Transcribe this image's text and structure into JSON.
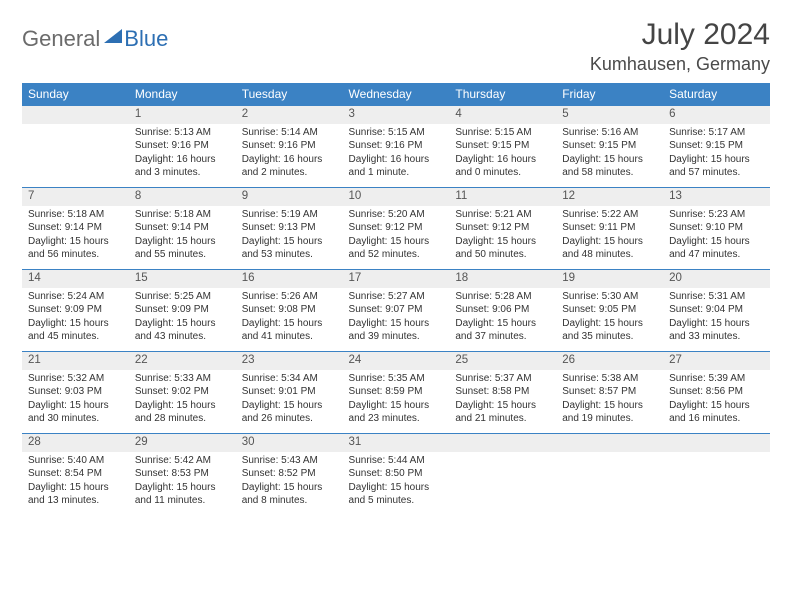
{
  "logo": {
    "general": "General",
    "blue": "Blue"
  },
  "title": "July 2024",
  "location": "Kumhausen, Germany",
  "colors": {
    "header_bg": "#3b82c4",
    "header_text": "#ffffff",
    "daynum_bg": "#eeeeee",
    "border": "#3b82c4",
    "text": "#333333",
    "title_color": "#444444"
  },
  "weekdays": [
    "Sunday",
    "Monday",
    "Tuesday",
    "Wednesday",
    "Thursday",
    "Friday",
    "Saturday"
  ],
  "weeks": [
    [
      null,
      {
        "n": "1",
        "sr": "5:13 AM",
        "ss": "9:16 PM",
        "dl": "16 hours and 3 minutes."
      },
      {
        "n": "2",
        "sr": "5:14 AM",
        "ss": "9:16 PM",
        "dl": "16 hours and 2 minutes."
      },
      {
        "n": "3",
        "sr": "5:15 AM",
        "ss": "9:16 PM",
        "dl": "16 hours and 1 minute."
      },
      {
        "n": "4",
        "sr": "5:15 AM",
        "ss": "9:15 PM",
        "dl": "16 hours and 0 minutes."
      },
      {
        "n": "5",
        "sr": "5:16 AM",
        "ss": "9:15 PM",
        "dl": "15 hours and 58 minutes."
      },
      {
        "n": "6",
        "sr": "5:17 AM",
        "ss": "9:15 PM",
        "dl": "15 hours and 57 minutes."
      }
    ],
    [
      {
        "n": "7",
        "sr": "5:18 AM",
        "ss": "9:14 PM",
        "dl": "15 hours and 56 minutes."
      },
      {
        "n": "8",
        "sr": "5:18 AM",
        "ss": "9:14 PM",
        "dl": "15 hours and 55 minutes."
      },
      {
        "n": "9",
        "sr": "5:19 AM",
        "ss": "9:13 PM",
        "dl": "15 hours and 53 minutes."
      },
      {
        "n": "10",
        "sr": "5:20 AM",
        "ss": "9:12 PM",
        "dl": "15 hours and 52 minutes."
      },
      {
        "n": "11",
        "sr": "5:21 AM",
        "ss": "9:12 PM",
        "dl": "15 hours and 50 minutes."
      },
      {
        "n": "12",
        "sr": "5:22 AM",
        "ss": "9:11 PM",
        "dl": "15 hours and 48 minutes."
      },
      {
        "n": "13",
        "sr": "5:23 AM",
        "ss": "9:10 PM",
        "dl": "15 hours and 47 minutes."
      }
    ],
    [
      {
        "n": "14",
        "sr": "5:24 AM",
        "ss": "9:09 PM",
        "dl": "15 hours and 45 minutes."
      },
      {
        "n": "15",
        "sr": "5:25 AM",
        "ss": "9:09 PM",
        "dl": "15 hours and 43 minutes."
      },
      {
        "n": "16",
        "sr": "5:26 AM",
        "ss": "9:08 PM",
        "dl": "15 hours and 41 minutes."
      },
      {
        "n": "17",
        "sr": "5:27 AM",
        "ss": "9:07 PM",
        "dl": "15 hours and 39 minutes."
      },
      {
        "n": "18",
        "sr": "5:28 AM",
        "ss": "9:06 PM",
        "dl": "15 hours and 37 minutes."
      },
      {
        "n": "19",
        "sr": "5:30 AM",
        "ss": "9:05 PM",
        "dl": "15 hours and 35 minutes."
      },
      {
        "n": "20",
        "sr": "5:31 AM",
        "ss": "9:04 PM",
        "dl": "15 hours and 33 minutes."
      }
    ],
    [
      {
        "n": "21",
        "sr": "5:32 AM",
        "ss": "9:03 PM",
        "dl": "15 hours and 30 minutes."
      },
      {
        "n": "22",
        "sr": "5:33 AM",
        "ss": "9:02 PM",
        "dl": "15 hours and 28 minutes."
      },
      {
        "n": "23",
        "sr": "5:34 AM",
        "ss": "9:01 PM",
        "dl": "15 hours and 26 minutes."
      },
      {
        "n": "24",
        "sr": "5:35 AM",
        "ss": "8:59 PM",
        "dl": "15 hours and 23 minutes."
      },
      {
        "n": "25",
        "sr": "5:37 AM",
        "ss": "8:58 PM",
        "dl": "15 hours and 21 minutes."
      },
      {
        "n": "26",
        "sr": "5:38 AM",
        "ss": "8:57 PM",
        "dl": "15 hours and 19 minutes."
      },
      {
        "n": "27",
        "sr": "5:39 AM",
        "ss": "8:56 PM",
        "dl": "15 hours and 16 minutes."
      }
    ],
    [
      {
        "n": "28",
        "sr": "5:40 AM",
        "ss": "8:54 PM",
        "dl": "15 hours and 13 minutes."
      },
      {
        "n": "29",
        "sr": "5:42 AM",
        "ss": "8:53 PM",
        "dl": "15 hours and 11 minutes."
      },
      {
        "n": "30",
        "sr": "5:43 AM",
        "ss": "8:52 PM",
        "dl": "15 hours and 8 minutes."
      },
      {
        "n": "31",
        "sr": "5:44 AM",
        "ss": "8:50 PM",
        "dl": "15 hours and 5 minutes."
      },
      null,
      null,
      null
    ]
  ],
  "labels": {
    "sunrise": "Sunrise:",
    "sunset": "Sunset:",
    "daylight": "Daylight:"
  }
}
